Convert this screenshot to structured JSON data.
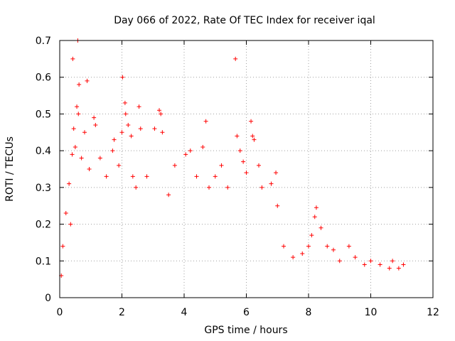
{
  "chart_data": {
    "type": "scatter",
    "title": "Day 066 of 2022, Rate Of TEC Index for receiver iqal",
    "xlabel": "GPS time / hours",
    "ylabel": "ROTI / TECUs",
    "xlim": [
      0,
      12
    ],
    "ylim": [
      0,
      0.7
    ],
    "x_ticks": [
      0,
      2,
      4,
      6,
      8,
      10,
      12
    ],
    "y_ticks": [
      0,
      0.1,
      0.2,
      0.3,
      0.4,
      0.5,
      0.6,
      0.7
    ],
    "grid": true,
    "marker": "+",
    "series": [
      {
        "name": "ROTI",
        "color": "#ff0000",
        "points": [
          [
            0.05,
            0.06
          ],
          [
            0.1,
            0.14
          ],
          [
            0.2,
            0.23
          ],
          [
            0.3,
            0.31
          ],
          [
            0.35,
            0.2
          ],
          [
            0.4,
            0.39
          ],
          [
            0.42,
            0.65
          ],
          [
            0.45,
            0.46
          ],
          [
            0.5,
            0.41
          ],
          [
            0.55,
            0.52
          ],
          [
            0.58,
            0.7
          ],
          [
            0.6,
            0.5
          ],
          [
            0.62,
            0.58
          ],
          [
            0.7,
            0.38
          ],
          [
            0.8,
            0.45
          ],
          [
            0.88,
            0.59
          ],
          [
            0.95,
            0.35
          ],
          [
            1.1,
            0.49
          ],
          [
            1.15,
            0.47
          ],
          [
            1.3,
            0.38
          ],
          [
            1.5,
            0.33
          ],
          [
            1.7,
            0.4
          ],
          [
            1.75,
            0.43
          ],
          [
            1.9,
            0.36
          ],
          [
            2.0,
            0.45
          ],
          [
            2.02,
            0.6
          ],
          [
            2.1,
            0.53
          ],
          [
            2.12,
            0.5
          ],
          [
            2.2,
            0.47
          ],
          [
            2.3,
            0.44
          ],
          [
            2.35,
            0.33
          ],
          [
            2.45,
            0.3
          ],
          [
            2.55,
            0.52
          ],
          [
            2.6,
            0.46
          ],
          [
            2.8,
            0.33
          ],
          [
            3.05,
            0.46
          ],
          [
            3.2,
            0.51
          ],
          [
            3.25,
            0.5
          ],
          [
            3.3,
            0.45
          ],
          [
            3.5,
            0.28
          ],
          [
            3.7,
            0.36
          ],
          [
            4.05,
            0.39
          ],
          [
            4.2,
            0.4
          ],
          [
            4.4,
            0.33
          ],
          [
            4.6,
            0.41
          ],
          [
            4.7,
            0.48
          ],
          [
            4.8,
            0.3
          ],
          [
            5.0,
            0.33
          ],
          [
            5.2,
            0.36
          ],
          [
            5.4,
            0.3
          ],
          [
            5.65,
            0.65
          ],
          [
            5.7,
            0.44
          ],
          [
            5.8,
            0.4
          ],
          [
            5.9,
            0.37
          ],
          [
            6.0,
            0.34
          ],
          [
            6.15,
            0.48
          ],
          [
            6.2,
            0.44
          ],
          [
            6.25,
            0.43
          ],
          [
            6.4,
            0.36
          ],
          [
            6.5,
            0.3
          ],
          [
            6.8,
            0.31
          ],
          [
            6.95,
            0.34
          ],
          [
            7.0,
            0.25
          ],
          [
            7.2,
            0.14
          ],
          [
            7.5,
            0.11
          ],
          [
            7.8,
            0.12
          ],
          [
            8.0,
            0.14
          ],
          [
            8.1,
            0.17
          ],
          [
            8.2,
            0.22
          ],
          [
            8.25,
            0.245
          ],
          [
            8.4,
            0.19
          ],
          [
            8.6,
            0.14
          ],
          [
            8.8,
            0.13
          ],
          [
            9.0,
            0.1
          ],
          [
            9.3,
            0.14
          ],
          [
            9.5,
            0.11
          ],
          [
            9.8,
            0.09
          ],
          [
            10.0,
            0.1
          ],
          [
            10.3,
            0.09
          ],
          [
            10.6,
            0.08
          ],
          [
            10.7,
            0.1
          ],
          [
            10.9,
            0.08
          ],
          [
            11.05,
            0.09
          ]
        ]
      }
    ]
  }
}
